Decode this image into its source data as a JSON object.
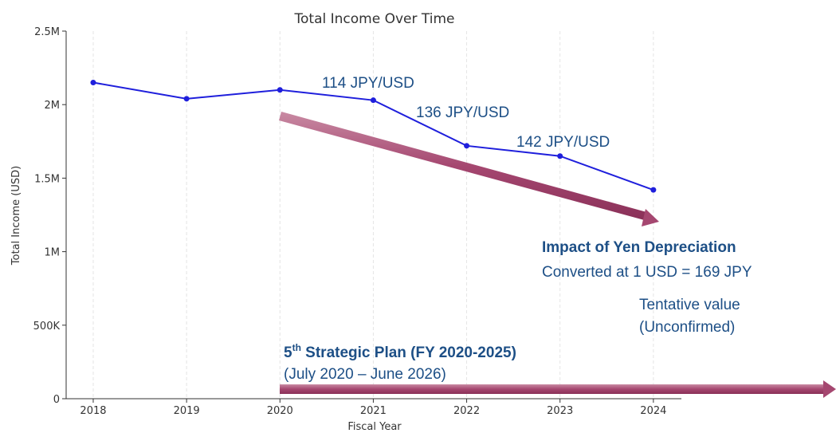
{
  "chart_data": {
    "type": "line",
    "title": "Total Income Over Time",
    "x_label": "Fiscal Year",
    "y_label": "Total Income (USD)",
    "x": [
      2018,
      2019,
      2020,
      2021,
      2022,
      2023,
      2024
    ],
    "series": [
      {
        "name": "Total Income",
        "color": "#1f1fdc",
        "values": [
          2150000,
          2040000,
          2100000,
          2030000,
          1720000,
          1650000,
          1420000
        ]
      }
    ],
    "xlim": [
      2017.71,
      2024.3
    ],
    "xticks": [
      2018,
      2019,
      2020,
      2021,
      2022,
      2023,
      2024
    ],
    "ylim": [
      0,
      2500000
    ],
    "yticks": [
      0,
      {
        "value": 500000,
        "label": "500K"
      },
      {
        "value": 1000000,
        "label": "1M"
      },
      {
        "value": 1500000,
        "label": "1.5M"
      },
      {
        "value": 2000000,
        "label": "2M"
      },
      {
        "value": 2500000,
        "label": "2.5M"
      }
    ],
    "grid": true,
    "annotations": [
      "114 JPY/USD",
      "136 JPY/USD",
      "142 JPY/USD",
      "Impact of Yen Depreciation",
      "Converted at 1 USD = 169 JPY",
      "Tentative value",
      "(Unconfirmed)"
    ],
    "plan": {
      "number": "5",
      "suffix": "th",
      "text": " Strategic Plan (FY 2020-2025)",
      "period": "(July 2020 – June 2026)"
    }
  }
}
